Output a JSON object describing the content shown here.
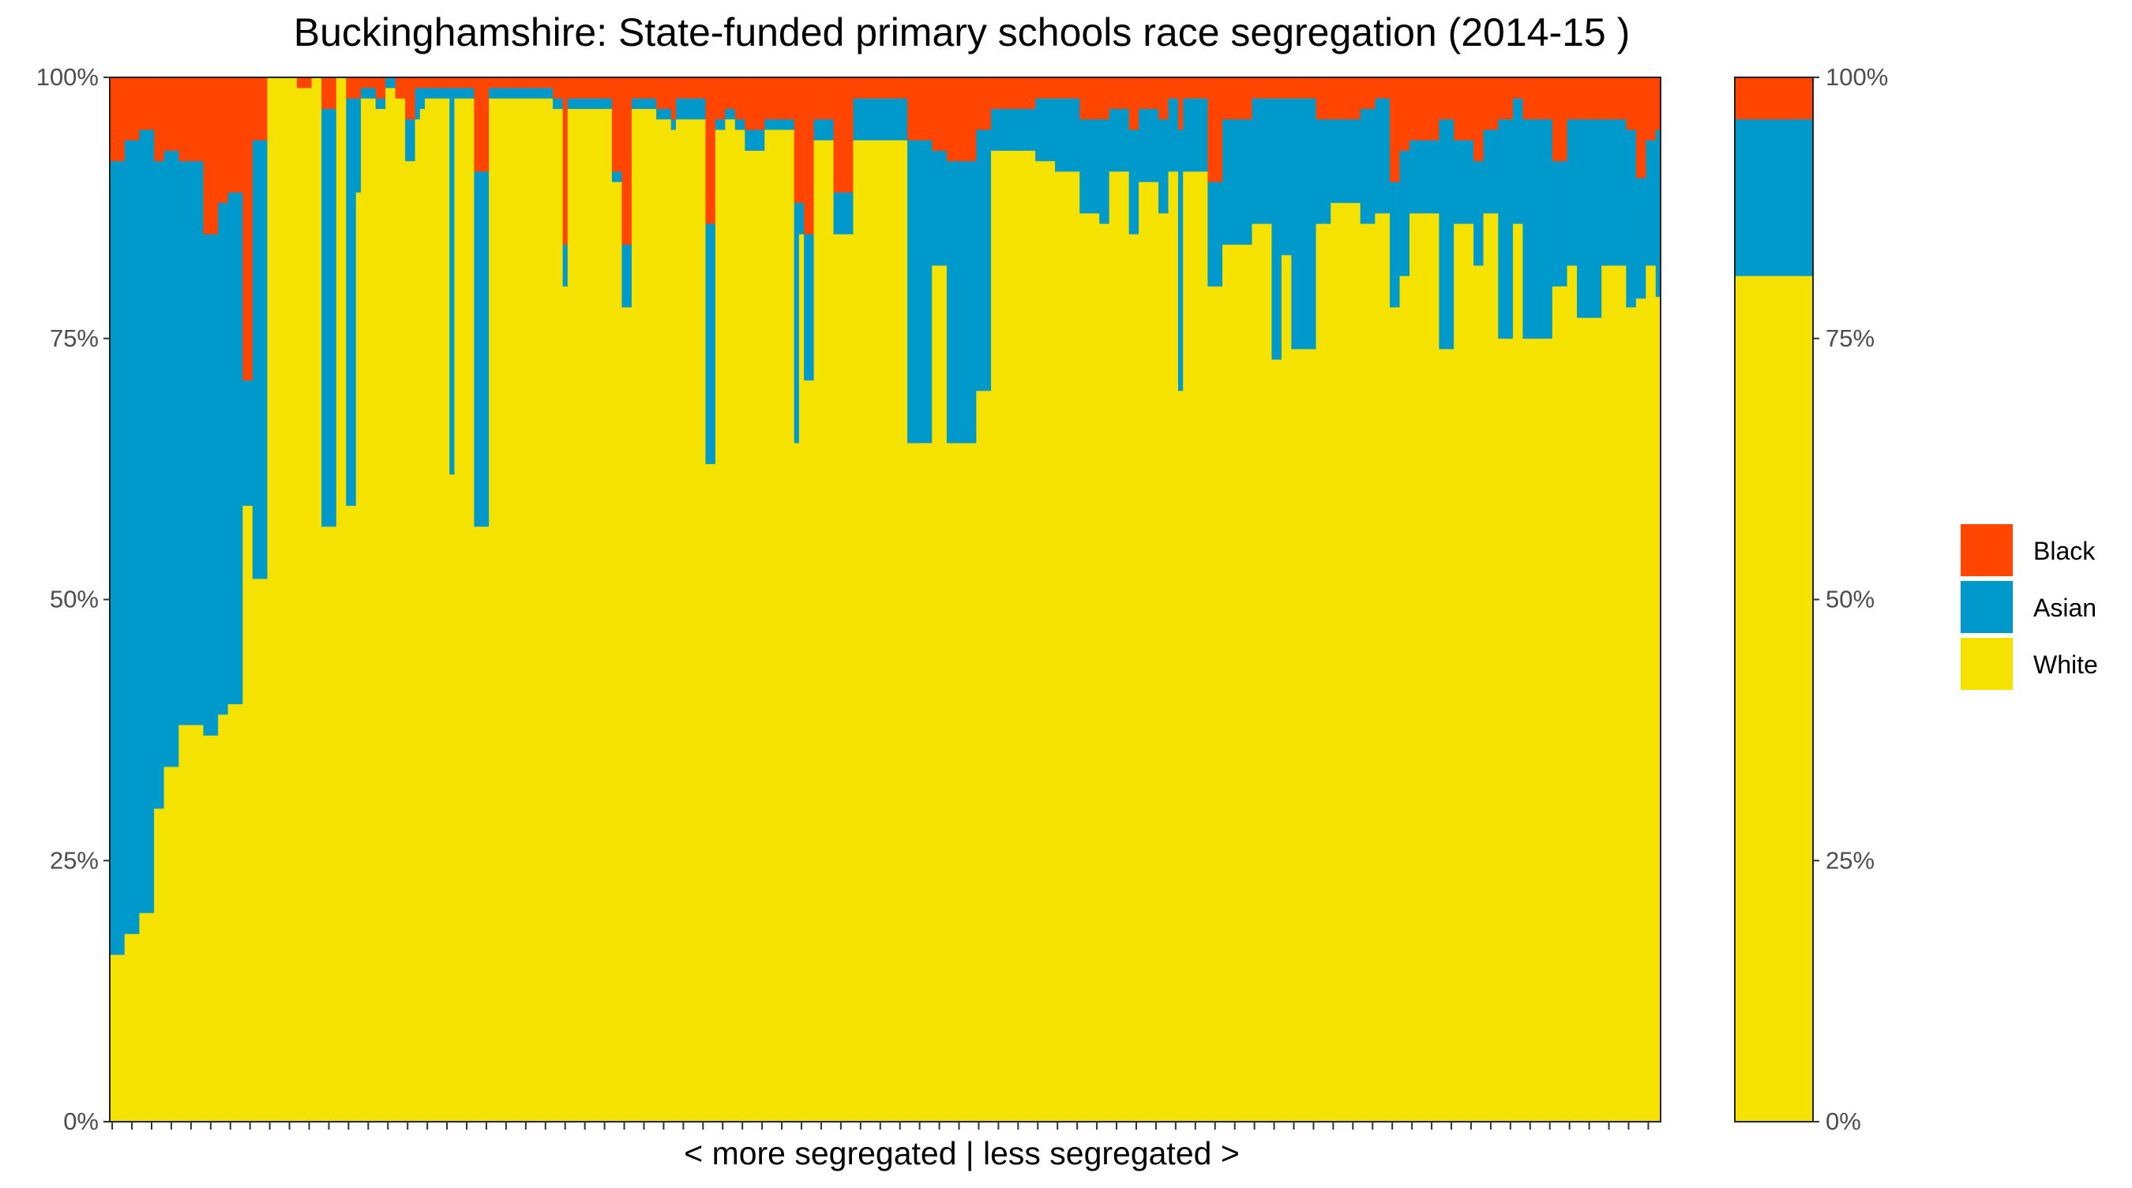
{
  "chart_data": {
    "type": "bar",
    "stacked": true,
    "title": "Buckinghamshire: State-funded primary schools race segregation (2014-15 )",
    "xlabel": "< more segregated | less segregated >",
    "ylabel": "",
    "ylim": [
      0,
      100
    ],
    "y_ticks": [
      "0%",
      "25%",
      "50%",
      "75%",
      "100%"
    ],
    "grid": false,
    "legend_position": "right",
    "stack_order": [
      "White",
      "Asian",
      "Black"
    ],
    "colors": {
      "Black": "#FF4500",
      "Asian": "#0099CC",
      "White": "#F5E200"
    },
    "legend": [
      "Black",
      "Asian",
      "White"
    ],
    "schools": {
      "units": "percent",
      "series": [
        {
          "name": "White",
          "values": [
            16,
            16,
            16,
            18,
            18,
            18,
            20,
            20,
            20,
            30,
            30,
            34,
            34,
            34,
            38,
            38,
            38,
            38,
            38,
            37,
            37,
            37,
            39,
            39,
            40,
            40,
            40,
            59,
            59,
            52,
            52,
            52,
            100,
            100,
            100,
            100,
            100,
            100,
            99,
            99,
            99,
            100,
            100,
            57,
            57,
            57,
            100,
            100,
            59,
            59,
            89,
            98,
            98,
            98,
            97,
            97,
            99,
            99,
            98,
            98,
            92,
            92,
            96,
            97,
            98,
            98,
            98,
            98,
            98,
            62,
            98,
            98,
            98,
            98,
            57,
            57,
            57,
            98,
            98,
            98,
            98,
            98,
            98,
            98,
            98,
            98,
            98,
            98,
            98,
            98,
            97,
            97,
            80,
            97,
            97,
            97,
            97,
            97,
            97,
            97,
            97,
            97,
            90,
            90,
            78,
            78,
            97,
            97,
            97,
            97,
            97,
            96,
            96,
            96,
            95,
            96,
            96,
            96,
            96,
            96,
            96,
            63,
            63,
            95,
            95,
            96,
            96,
            95,
            95,
            93,
            93,
            93,
            93,
            95,
            95,
            95,
            95,
            95,
            95,
            65,
            85,
            71,
            71,
            94,
            94,
            94,
            94,
            85,
            85,
            85,
            85,
            94,
            94,
            94,
            94,
            94,
            94,
            94,
            94,
            94,
            94,
            94,
            65,
            65,
            65,
            65,
            65,
            82,
            82,
            82,
            65,
            65,
            65,
            65,
            65,
            65,
            70,
            70,
            70,
            93,
            93,
            93,
            93,
            93,
            93,
            93,
            93,
            93,
            92,
            92,
            92,
            92,
            91,
            91,
            91,
            91,
            91,
            87,
            87,
            87,
            87,
            86,
            86,
            91,
            91,
            91,
            91,
            85,
            85,
            90,
            90,
            90,
            90,
            87,
            87,
            91,
            91,
            70,
            91,
            91,
            91,
            91,
            91,
            80,
            80,
            80,
            84,
            84,
            84,
            84,
            84,
            84,
            86,
            86,
            86,
            86,
            73,
            73,
            83,
            83,
            74,
            74,
            74,
            74,
            74,
            86,
            86,
            86,
            88,
            88,
            88,
            88,
            88,
            88,
            86,
            86,
            86,
            87,
            87,
            87,
            78,
            78,
            81,
            81,
            87,
            87,
            87,
            87,
            87,
            87,
            74,
            74,
            74,
            86,
            86,
            86,
            86,
            82,
            82,
            87,
            87,
            87,
            75,
            75,
            75,
            86,
            86,
            75,
            75,
            75,
            75,
            75,
            75,
            80,
            80,
            80,
            82,
            82,
            77,
            77,
            77,
            77,
            77,
            82,
            82,
            82,
            82,
            82,
            78,
            78,
            82,
            82,
            82,
            82,
            79
          ]
        },
        {
          "name": "Asian",
          "values": [
            76,
            76,
            76,
            76,
            76,
            76,
            75,
            75,
            75,
            62,
            62,
            59,
            59,
            59,
            54,
            54,
            54,
            54,
            54,
            48,
            48,
            48,
            49,
            49,
            49,
            49,
            49,
            12,
            12,
            42,
            42,
            42,
            0,
            0,
            0,
            0,
            0,
            0,
            0,
            0,
            0,
            0,
            0,
            40,
            40,
            40,
            0,
            0,
            39,
            39,
            9,
            1,
            1,
            1,
            1,
            1,
            1,
            1,
            0,
            0,
            4,
            4,
            3,
            2,
            1,
            1,
            1,
            1,
            1,
            37,
            1,
            1,
            1,
            1,
            34,
            34,
            34,
            1,
            1,
            1,
            1,
            1,
            1,
            1,
            1,
            1,
            1,
            1,
            1,
            1,
            1,
            1,
            4,
            1,
            1,
            1,
            1,
            1,
            1,
            1,
            1,
            1,
            1,
            1,
            6,
            6,
            1,
            1,
            1,
            1,
            1,
            1,
            1,
            1,
            1,
            2,
            2,
            2,
            2,
            2,
            2,
            23,
            23,
            1,
            1,
            1,
            1,
            1,
            1,
            2,
            2,
            2,
            2,
            1,
            1,
            1,
            1,
            1,
            1,
            23,
            3,
            14,
            14,
            2,
            2,
            2,
            2,
            4,
            4,
            4,
            4,
            4,
            4,
            4,
            4,
            4,
            4,
            4,
            4,
            4,
            4,
            4,
            29,
            29,
            29,
            29,
            29,
            11,
            11,
            11,
            27,
            27,
            27,
            27,
            27,
            27,
            25,
            25,
            25,
            4,
            4,
            4,
            4,
            4,
            4,
            4,
            4,
            4,
            6,
            6,
            6,
            6,
            7,
            7,
            7,
            7,
            7,
            9,
            9,
            9,
            9,
            10,
            10,
            6,
            6,
            6,
            6,
            10,
            10,
            7,
            7,
            7,
            7,
            9,
            9,
            7,
            7,
            25,
            7,
            7,
            7,
            7,
            7,
            10,
            10,
            10,
            12,
            12,
            12,
            12,
            12,
            12,
            12,
            12,
            12,
            12,
            25,
            25,
            15,
            15,
            24,
            24,
            24,
            24,
            24,
            10,
            10,
            10,
            8,
            8,
            8,
            8,
            8,
            8,
            11,
            11,
            11,
            11,
            11,
            11,
            12,
            12,
            12,
            12,
            7,
            7,
            7,
            7,
            7,
            7,
            22,
            22,
            22,
            8,
            8,
            8,
            8,
            10,
            10,
            8,
            8,
            8,
            21,
            21,
            21,
            12,
            12,
            21,
            21,
            21,
            21,
            21,
            21,
            12,
            12,
            12,
            14,
            14,
            19,
            19,
            19,
            19,
            19,
            14,
            14,
            14,
            14,
            14,
            17,
            17,
            12,
            12,
            12,
            12,
            16
          ]
        },
        {
          "name": "Black",
          "values": [
            8,
            8,
            8,
            6,
            6,
            6,
            5,
            5,
            5,
            8,
            8,
            7,
            7,
            7,
            8,
            8,
            8,
            8,
            8,
            15,
            15,
            15,
            12,
            12,
            11,
            11,
            11,
            29,
            29,
            6,
            6,
            6,
            0,
            0,
            0,
            0,
            0,
            0,
            1,
            1,
            1,
            0,
            0,
            3,
            3,
            3,
            0,
            0,
            2,
            2,
            2,
            1,
            1,
            1,
            2,
            2,
            0,
            0,
            2,
            2,
            4,
            4,
            1,
            1,
            1,
            1,
            1,
            1,
            1,
            1,
            1,
            1,
            1,
            1,
            9,
            9,
            9,
            1,
            1,
            1,
            1,
            1,
            1,
            1,
            1,
            1,
            1,
            1,
            1,
            1,
            2,
            2,
            16,
            2,
            2,
            2,
            2,
            2,
            2,
            2,
            2,
            2,
            9,
            9,
            16,
            16,
            2,
            2,
            2,
            2,
            2,
            3,
            3,
            3,
            4,
            2,
            2,
            2,
            2,
            2,
            2,
            14,
            14,
            4,
            4,
            3,
            3,
            4,
            4,
            5,
            5,
            5,
            5,
            4,
            4,
            4,
            4,
            4,
            4,
            12,
            12,
            15,
            15,
            4,
            4,
            4,
            4,
            11,
            11,
            11,
            11,
            2,
            2,
            2,
            2,
            2,
            2,
            2,
            2,
            2,
            2,
            2,
            6,
            6,
            6,
            6,
            6,
            7,
            7,
            7,
            8,
            8,
            8,
            8,
            8,
            8,
            5,
            5,
            5,
            3,
            3,
            3,
            3,
            3,
            3,
            3,
            3,
            3,
            2,
            2,
            2,
            2,
            2,
            2,
            2,
            2,
            2,
            4,
            4,
            4,
            4,
            4,
            4,
            3,
            3,
            3,
            3,
            5,
            5,
            3,
            3,
            3,
            3,
            4,
            4,
            2,
            2,
            5,
            2,
            2,
            2,
            2,
            2,
            10,
            10,
            10,
            4,
            4,
            4,
            4,
            4,
            4,
            2,
            2,
            2,
            2,
            2,
            2,
            2,
            2,
            2,
            2,
            2,
            2,
            2,
            4,
            4,
            4,
            4,
            4,
            4,
            4,
            4,
            4,
            3,
            3,
            3,
            2,
            2,
            2,
            10,
            10,
            7,
            7,
            6,
            6,
            6,
            6,
            6,
            6,
            4,
            4,
            4,
            6,
            6,
            6,
            6,
            8,
            8,
            5,
            5,
            5,
            4,
            4,
            4,
            2,
            2,
            4,
            4,
            4,
            4,
            4,
            4,
            8,
            8,
            8,
            4,
            4,
            4,
            4,
            4,
            4,
            4,
            4,
            4,
            4,
            4,
            4,
            5,
            5,
            10,
            10,
            6,
            6,
            5,
            5,
            5
          ]
        }
      ]
    },
    "overall": {
      "categories": [
        "Buckinghamshire"
      ],
      "units": "percent",
      "series": [
        {
          "name": "White",
          "values": [
            81
          ]
        },
        {
          "name": "Asian",
          "values": [
            15
          ]
        },
        {
          "name": "Black",
          "values": [
            4
          ]
        }
      ]
    }
  }
}
